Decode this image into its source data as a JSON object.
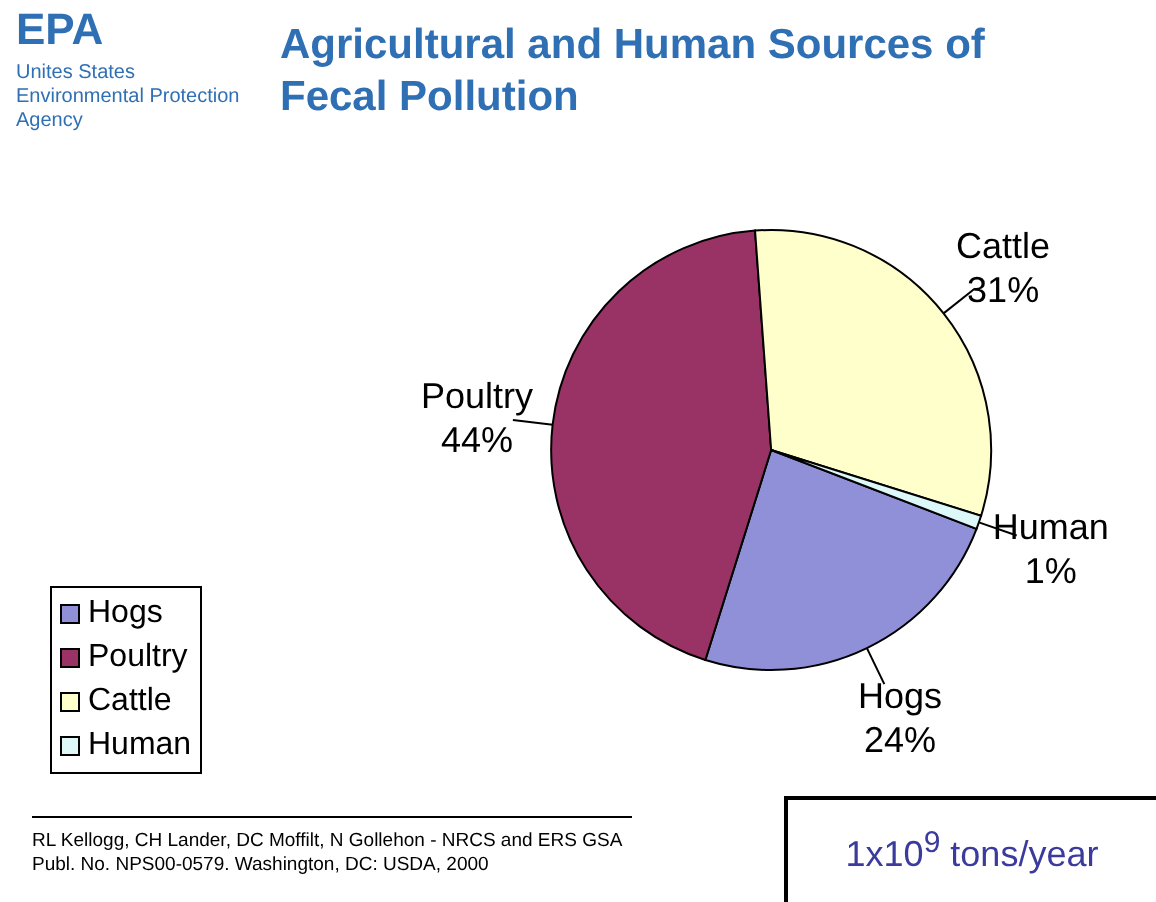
{
  "chart_data": {
    "type": "pie",
    "title": "Agricultural and Human Sources of Fecal Pollution",
    "categories": [
      "Hogs",
      "Poultry",
      "Cattle",
      "Human"
    ],
    "values": [
      24,
      44,
      31,
      1
    ],
    "colors": [
      "#9090d8",
      "#993366",
      "#ffffcc",
      "#dcf8f8"
    ],
    "value_labels": [
      "24%",
      "44%",
      "31%",
      "1%"
    ],
    "legend": "bottom left",
    "annotations": [
      "EPA",
      "Unites States Environmental Protection Agency",
      "RL Kellogg, CH Lander, DC Moffilt, N Gollehon - NRCS and ERS GSA Publ. No. NPS00-0579. Washington, DC: USDA, 2000",
      "1x10$^{9}$ tons/year"
    ]
  }
}
